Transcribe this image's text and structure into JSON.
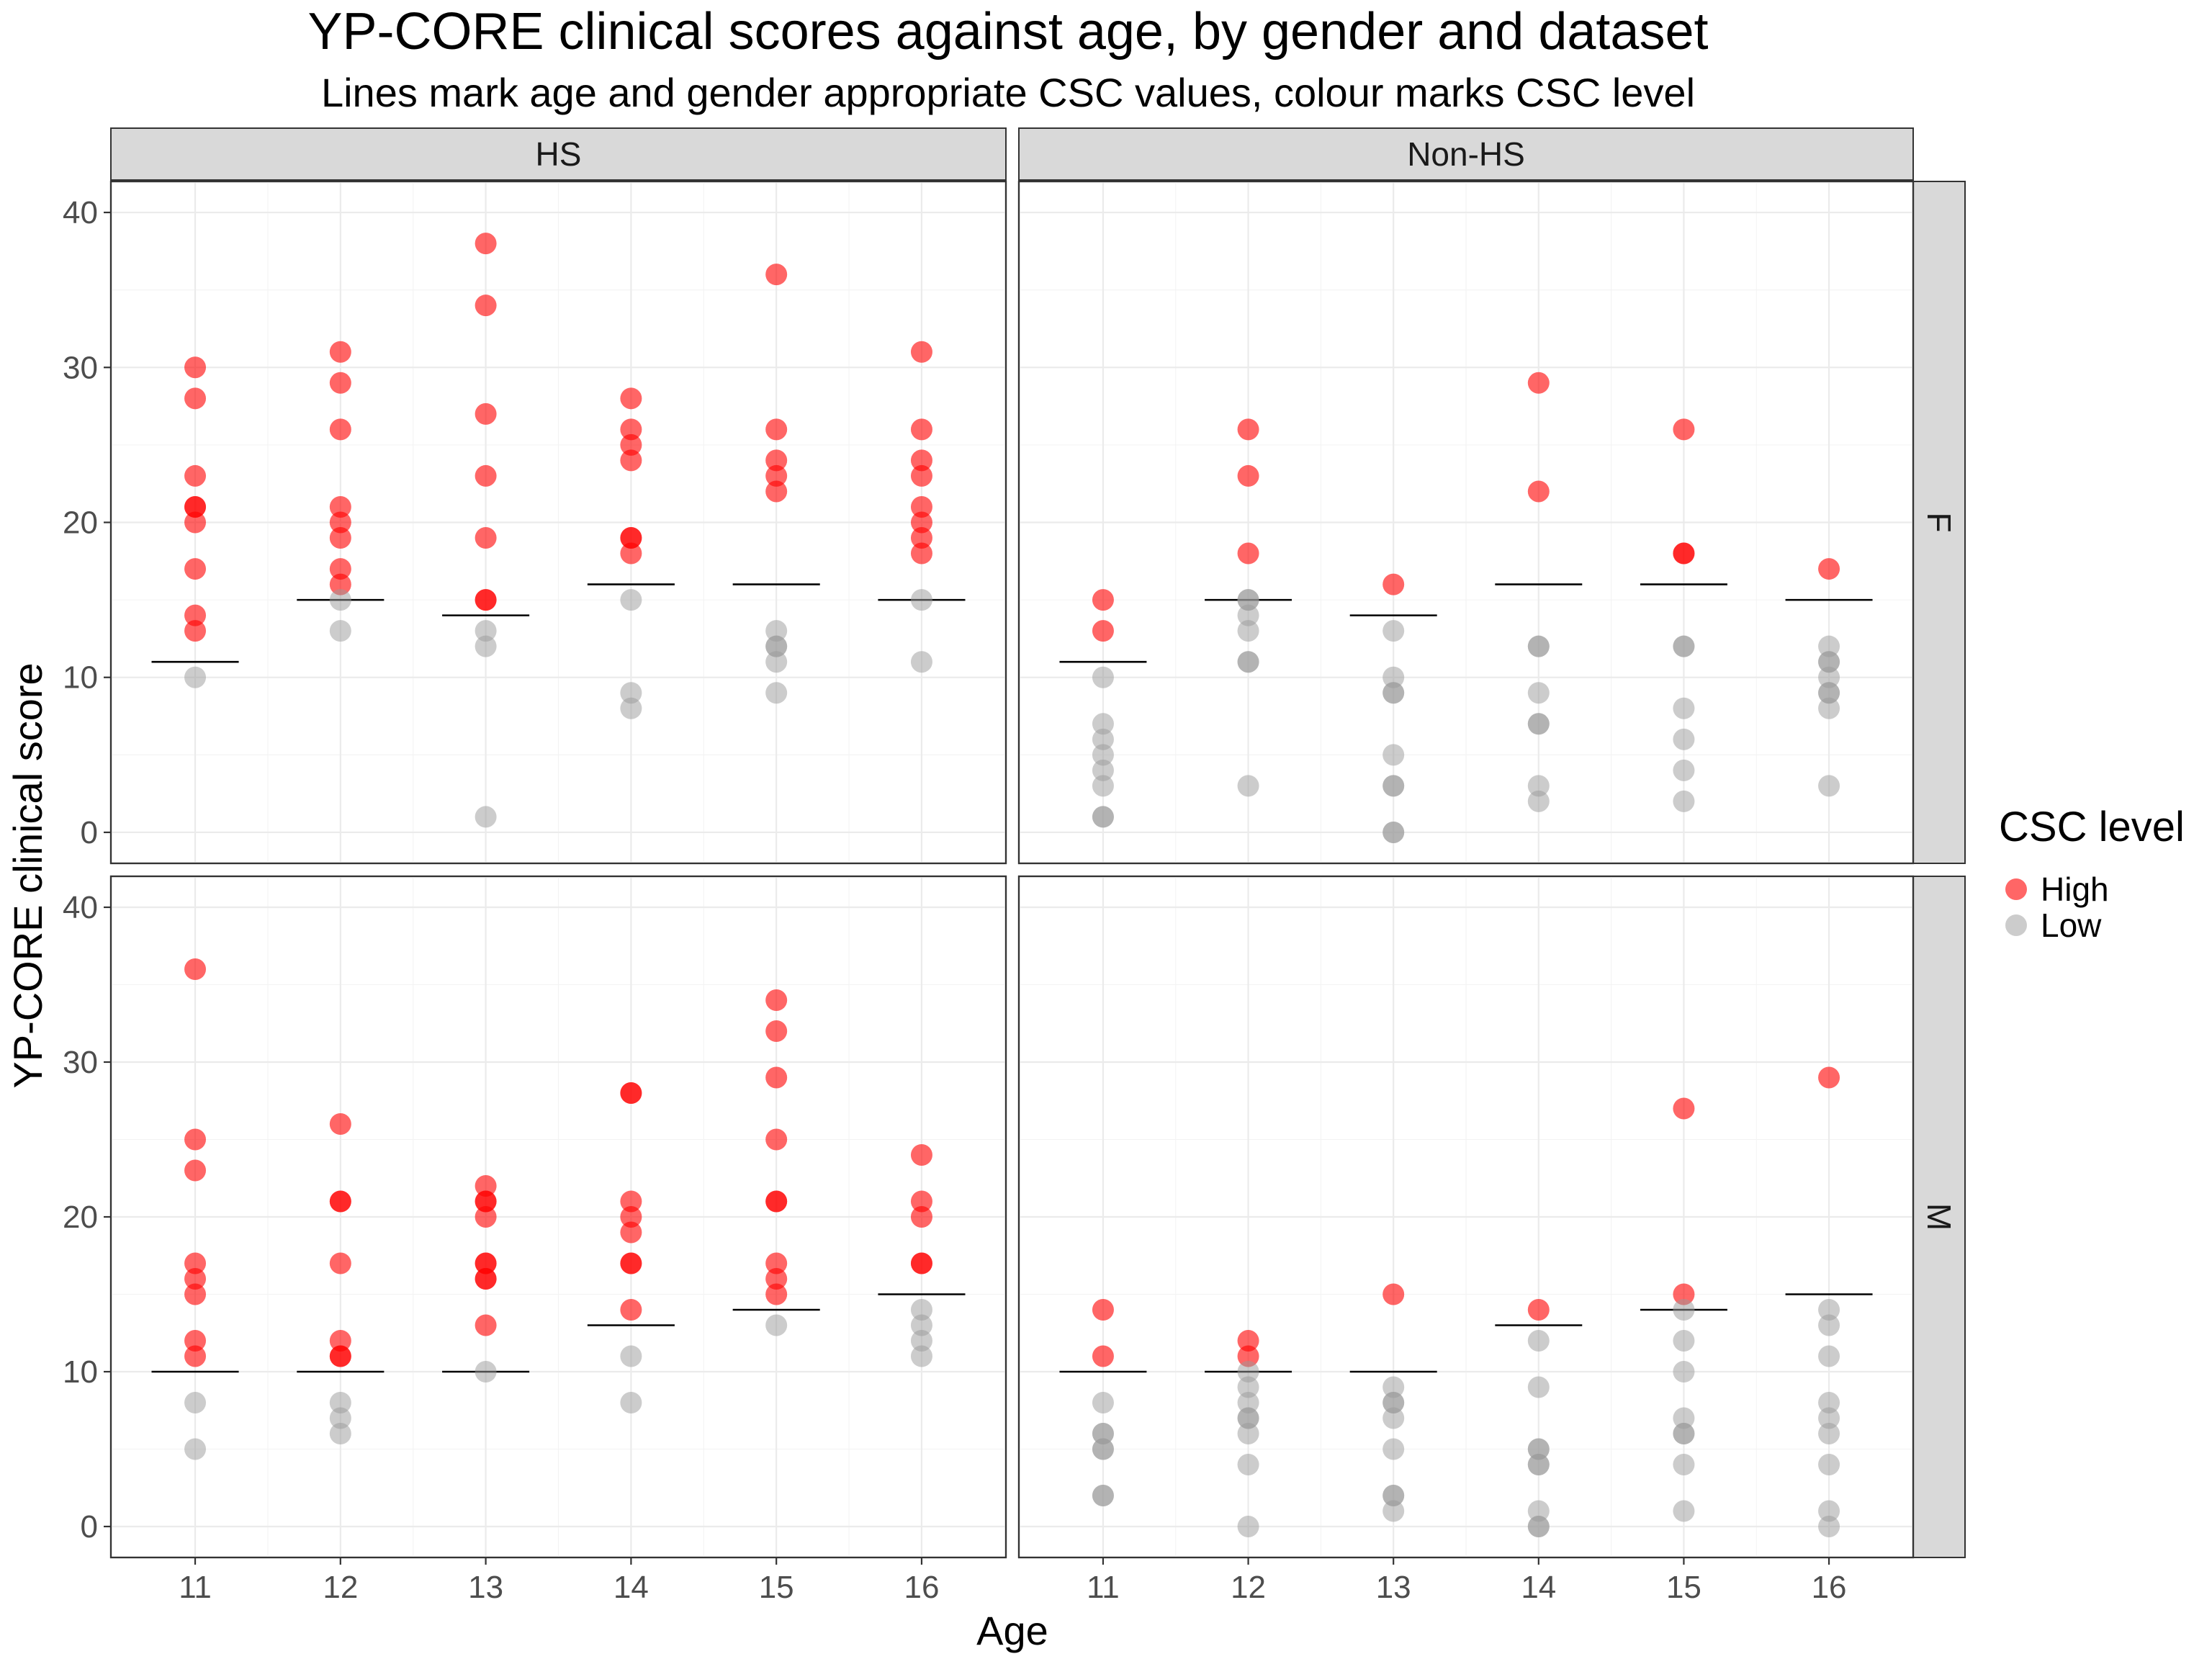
{
  "chart_data": {
    "type": "scatter",
    "title": "YP-CORE clinical scores against age, by gender and dataset",
    "subtitle": "Lines mark age and gender appropriate CSC values, colour marks CSC level",
    "xlabel": "Age",
    "ylabel": "YP-CORE clinical score",
    "x_ticks": [
      11,
      12,
      13,
      14,
      15,
      16
    ],
    "y_ticks": [
      0,
      10,
      20,
      30,
      40
    ],
    "xlim": [
      10.42,
      16.58
    ],
    "ylim": [
      -2,
      42
    ],
    "facet_columns": [
      "HS",
      "Non-HS"
    ],
    "facet_rows": [
      "F",
      "M"
    ],
    "legend": {
      "title": "CSC level",
      "position": "right",
      "items": [
        {
          "label": "High",
          "color": "#ff0000"
        },
        {
          "label": "Low",
          "color": "#999999"
        }
      ]
    },
    "csc_thresholds": {
      "F": {
        "11": 11,
        "12": 15,
        "13": 14,
        "14": 16,
        "15": 16,
        "16": 15
      },
      "M": {
        "11": 10,
        "12": 10,
        "13": 10,
        "14": 13,
        "15": 14,
        "16": 15
      }
    },
    "panels": [
      {
        "dataset": "HS",
        "gender": "F",
        "points": {
          "11": [
            30,
            28,
            23,
            21,
            21,
            20,
            17,
            14,
            13,
            10
          ],
          "12": [
            31,
            29,
            26,
            21,
            20,
            19,
            17,
            16,
            15,
            13
          ],
          "13": [
            38,
            34,
            27,
            23,
            19,
            15,
            15,
            13,
            12,
            1
          ],
          "14": [
            28,
            26,
            25,
            24,
            19,
            19,
            18,
            15,
            9,
            8
          ],
          "15": [
            36,
            26,
            24,
            23,
            22,
            13,
            12,
            12,
            11,
            9
          ],
          "16": [
            31,
            26,
            24,
            23,
            21,
            20,
            19,
            18,
            15,
            11
          ]
        }
      },
      {
        "dataset": "Non-HS",
        "gender": "F",
        "points": {
          "11": [
            15,
            13,
            10,
            7,
            6,
            5,
            4,
            3,
            1,
            1
          ],
          "12": [
            26,
            23,
            18,
            15,
            15,
            14,
            13,
            11,
            11,
            3
          ],
          "13": [
            16,
            13,
            10,
            9,
            9,
            5,
            3,
            3,
            0,
            0
          ],
          "14": [
            29,
            22,
            12,
            12,
            9,
            7,
            7,
            3,
            2
          ],
          "15": [
            26,
            18,
            18,
            12,
            12,
            8,
            6,
            4,
            2
          ],
          "16": [
            17,
            12,
            11,
            11,
            10,
            9,
            9,
            8,
            3
          ]
        }
      },
      {
        "dataset": "HS",
        "gender": "M",
        "points": {
          "11": [
            36,
            25,
            23,
            17,
            16,
            15,
            12,
            11,
            8,
            5
          ],
          "12": [
            26,
            21,
            21,
            17,
            12,
            11,
            11,
            8,
            7,
            6
          ],
          "13": [
            22,
            21,
            21,
            20,
            17,
            17,
            16,
            16,
            13,
            10
          ],
          "14": [
            28,
            28,
            21,
            20,
            19,
            17,
            17,
            14,
            11,
            8
          ],
          "15": [
            34,
            32,
            29,
            25,
            21,
            21,
            17,
            16,
            15,
            13
          ],
          "16": [
            24,
            21,
            20,
            17,
            17,
            14,
            13,
            12,
            11
          ]
        }
      },
      {
        "dataset": "Non-HS",
        "gender": "M",
        "points": {
          "11": [
            14,
            11,
            8,
            6,
            6,
            5,
            5,
            2,
            2
          ],
          "12": [
            12,
            11,
            10,
            9,
            8,
            7,
            7,
            6,
            4,
            0
          ],
          "13": [
            15,
            9,
            8,
            8,
            7,
            5,
            2,
            2,
            1
          ],
          "14": [
            14,
            12,
            9,
            5,
            5,
            4,
            4,
            1,
            0,
            0
          ],
          "15": [
            27,
            15,
            14,
            12,
            10,
            7,
            6,
            6,
            4,
            1
          ],
          "16": [
            29,
            14,
            13,
            11,
            8,
            7,
            6,
            4,
            1,
            0
          ]
        }
      }
    ]
  }
}
